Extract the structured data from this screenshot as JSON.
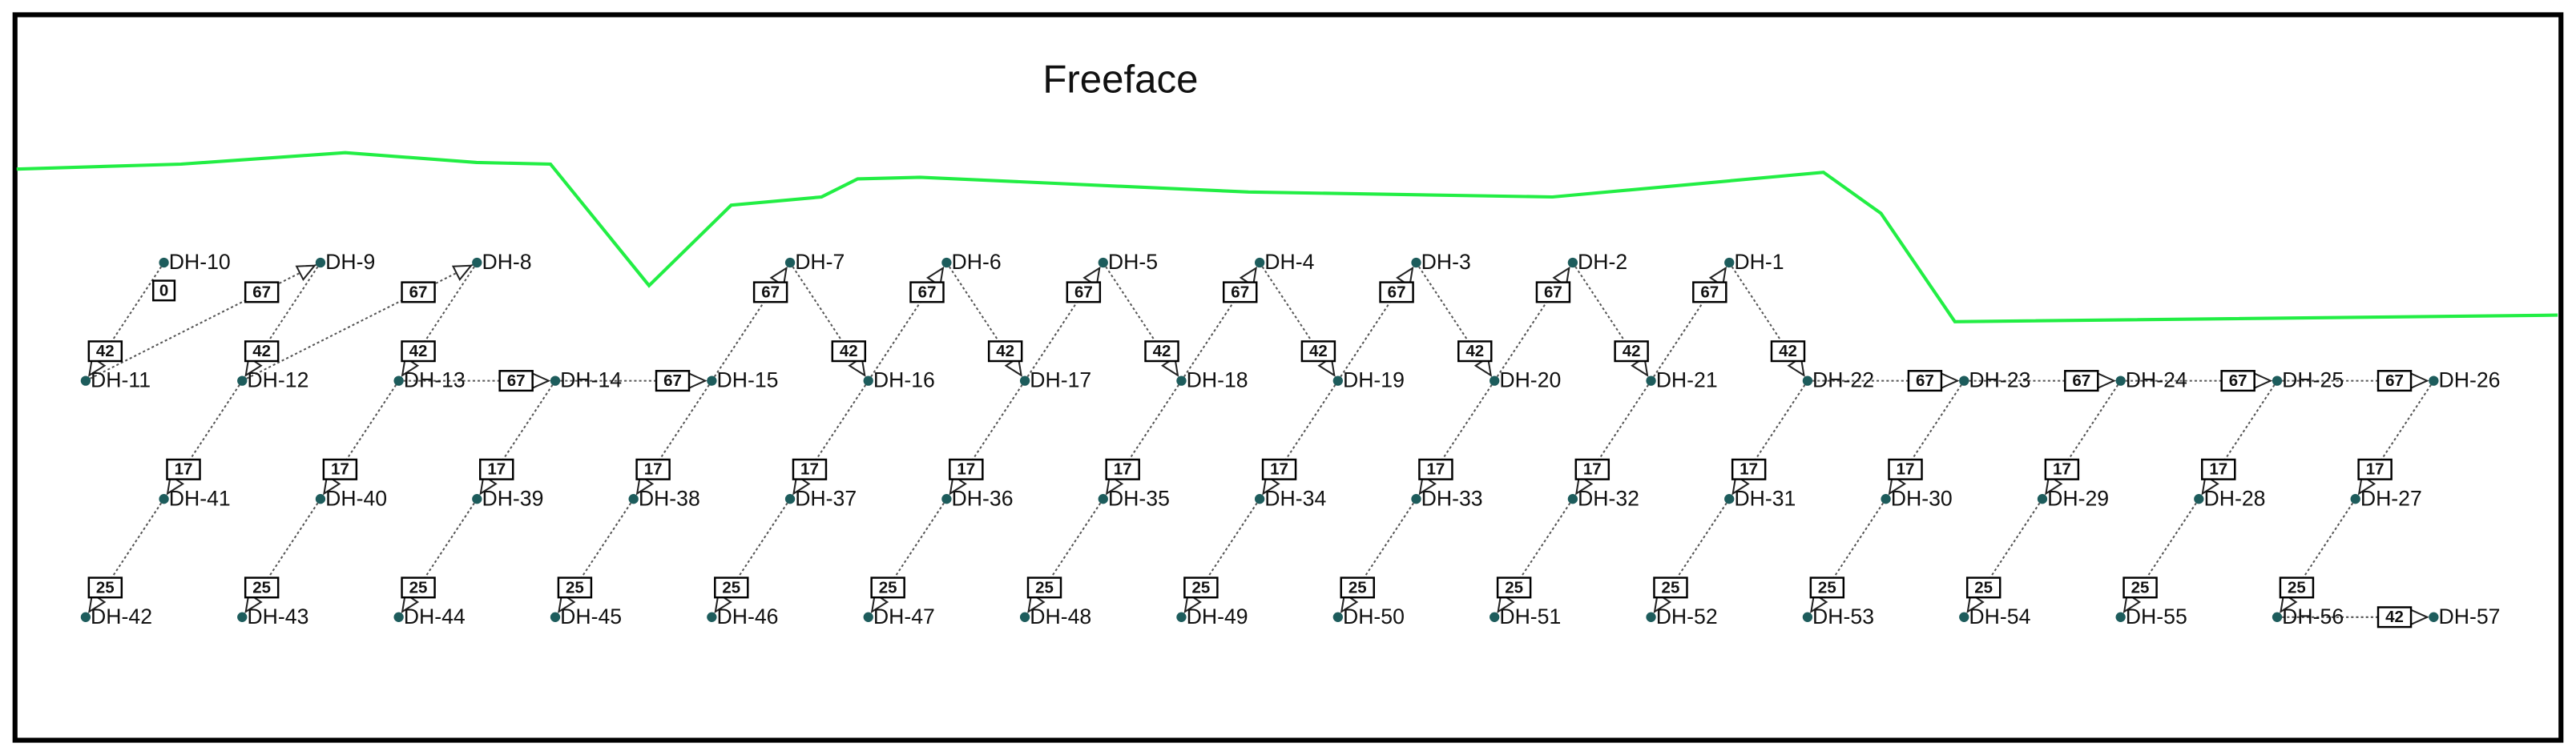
{
  "title": "Freeface",
  "nodes": [
    {
      "label": "DH-1"
    },
    {
      "label": "DH-2"
    },
    {
      "label": "DH-3"
    },
    {
      "label": "DH-4"
    },
    {
      "label": "DH-5"
    },
    {
      "label": "DH-6"
    },
    {
      "label": "DH-7"
    },
    {
      "label": "DH-8"
    },
    {
      "label": "DH-9"
    },
    {
      "label": "DH-10",
      "delay": 0
    },
    {
      "label": "DH-11"
    },
    {
      "label": "DH-12"
    },
    {
      "label": "DH-13"
    },
    {
      "label": "DH-14"
    },
    {
      "label": "DH-15"
    },
    {
      "label": "DH-16"
    },
    {
      "label": "DH-17"
    },
    {
      "label": "DH-18"
    },
    {
      "label": "DH-19"
    },
    {
      "label": "DH-20"
    },
    {
      "label": "DH-21"
    },
    {
      "label": "DH-22"
    },
    {
      "label": "DH-23"
    },
    {
      "label": "DH-24"
    },
    {
      "label": "DH-25"
    },
    {
      "label": "DH-26"
    },
    {
      "label": "DH-27"
    },
    {
      "label": "DH-28"
    },
    {
      "label": "DH-29"
    },
    {
      "label": "DH-30"
    },
    {
      "label": "DH-31"
    },
    {
      "label": "DH-32"
    },
    {
      "label": "DH-33"
    },
    {
      "label": "DH-34"
    },
    {
      "label": "DH-35"
    },
    {
      "label": "DH-36"
    },
    {
      "label": "DH-37"
    },
    {
      "label": "DH-38"
    },
    {
      "label": "DH-39"
    },
    {
      "label": "DH-40"
    },
    {
      "label": "DH-41"
    },
    {
      "label": "DH-42"
    },
    {
      "label": "DH-43"
    },
    {
      "label": "DH-44"
    },
    {
      "label": "DH-45"
    },
    {
      "label": "DH-46"
    },
    {
      "label": "DH-47"
    },
    {
      "label": "DH-48"
    },
    {
      "label": "DH-49"
    },
    {
      "label": "DH-50"
    },
    {
      "label": "DH-51"
    },
    {
      "label": "DH-52"
    },
    {
      "label": "DH-53"
    },
    {
      "label": "DH-54"
    },
    {
      "label": "DH-55"
    },
    {
      "label": "DH-56"
    },
    {
      "label": "DH-57"
    }
  ],
  "connections": [
    {
      "from": 9,
      "to": 10,
      "delay": 42
    },
    {
      "from": 10,
      "to": 8,
      "delay": 67
    },
    {
      "from": 8,
      "to": 11,
      "delay": 42
    },
    {
      "from": 11,
      "to": 7,
      "delay": 67
    },
    {
      "from": 7,
      "to": 12,
      "delay": 42
    },
    {
      "from": 12,
      "to": 13,
      "delay": 67
    },
    {
      "from": 13,
      "to": 14,
      "delay": 67
    },
    {
      "from": 14,
      "to": 6,
      "delay": 67
    },
    {
      "from": 6,
      "to": 15,
      "delay": 42
    },
    {
      "from": 15,
      "to": 5,
      "delay": 67
    },
    {
      "from": 5,
      "to": 16,
      "delay": 42
    },
    {
      "from": 16,
      "to": 4,
      "delay": 67
    },
    {
      "from": 4,
      "to": 17,
      "delay": 42
    },
    {
      "from": 17,
      "to": 3,
      "delay": 67
    },
    {
      "from": 3,
      "to": 18,
      "delay": 42
    },
    {
      "from": 18,
      "to": 2,
      "delay": 67
    },
    {
      "from": 2,
      "to": 19,
      "delay": 42
    },
    {
      "from": 19,
      "to": 1,
      "delay": 67
    },
    {
      "from": 1,
      "to": 20,
      "delay": 42
    },
    {
      "from": 20,
      "to": 0,
      "delay": 67
    },
    {
      "from": 0,
      "to": 21,
      "delay": 42
    },
    {
      "from": 21,
      "to": 22,
      "delay": 67
    },
    {
      "from": 22,
      "to": 23,
      "delay": 67
    },
    {
      "from": 23,
      "to": 24,
      "delay": 67
    },
    {
      "from": 24,
      "to": 25,
      "delay": 67
    },
    {
      "from": 11,
      "to": 40,
      "delay": 17
    },
    {
      "from": 12,
      "to": 39,
      "delay": 17
    },
    {
      "from": 13,
      "to": 38,
      "delay": 17
    },
    {
      "from": 14,
      "to": 37,
      "delay": 17
    },
    {
      "from": 15,
      "to": 36,
      "delay": 17
    },
    {
      "from": 16,
      "to": 35,
      "delay": 17
    },
    {
      "from": 17,
      "to": 34,
      "delay": 17
    },
    {
      "from": 18,
      "to": 33,
      "delay": 17
    },
    {
      "from": 19,
      "to": 32,
      "delay": 17
    },
    {
      "from": 20,
      "to": 31,
      "delay": 17
    },
    {
      "from": 21,
      "to": 30,
      "delay": 17
    },
    {
      "from": 22,
      "to": 29,
      "delay": 17
    },
    {
      "from": 23,
      "to": 28,
      "delay": 17
    },
    {
      "from": 24,
      "to": 27,
      "delay": 17
    },
    {
      "from": 25,
      "to": 26,
      "delay": 17
    },
    {
      "from": 40,
      "to": 41,
      "delay": 25
    },
    {
      "from": 39,
      "to": 42,
      "delay": 25
    },
    {
      "from": 38,
      "to": 43,
      "delay": 25
    },
    {
      "from": 37,
      "to": 44,
      "delay": 25
    },
    {
      "from": 36,
      "to": 45,
      "delay": 25
    },
    {
      "from": 35,
      "to": 46,
      "delay": 25
    },
    {
      "from": 34,
      "to": 47,
      "delay": 25
    },
    {
      "from": 33,
      "to": 48,
      "delay": 25
    },
    {
      "from": 32,
      "to": 49,
      "delay": 25
    },
    {
      "from": 31,
      "to": 50,
      "delay": 25
    },
    {
      "from": 30,
      "to": 51,
      "delay": 25
    },
    {
      "from": 29,
      "to": 52,
      "delay": 25
    },
    {
      "from": 28,
      "to": 53,
      "delay": 25
    },
    {
      "from": 27,
      "to": 54,
      "delay": 25
    },
    {
      "from": 26,
      "to": 55,
      "delay": 25
    },
    {
      "from": 55,
      "to": 56,
      "delay": 42
    }
  ]
}
